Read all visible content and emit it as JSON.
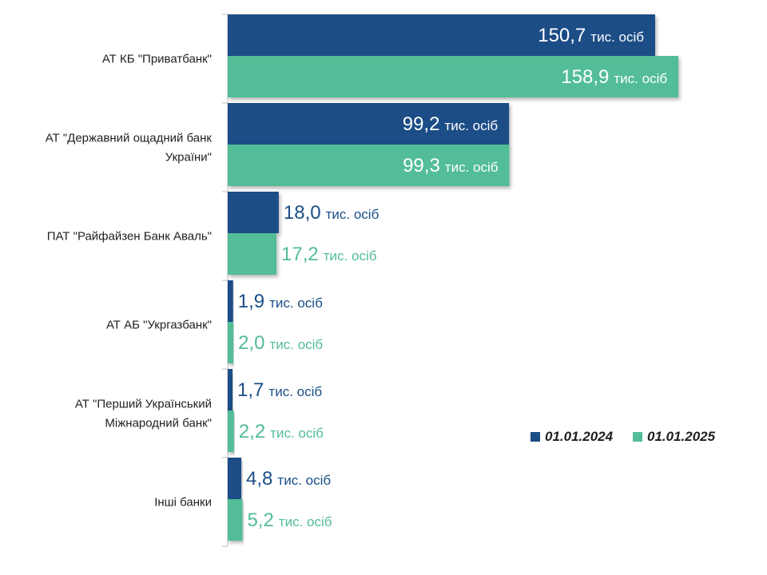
{
  "chart_data": {
    "type": "bar",
    "orientation": "horizontal",
    "title": "",
    "xlabel": "",
    "ylabel": "",
    "unit": "тис. осіб",
    "legend_position": "bottom-right",
    "grid": false,
    "categories": [
      [
        "АТ КБ \"Приватбанк\""
      ],
      [
        "АТ \"Державний ощадний банк",
        "України\""
      ],
      [
        "ПАТ \"Райфайзен Банк Аваль\""
      ],
      [
        "АТ АБ \"Укргазбанк\""
      ],
      [
        "АТ \"Перший Український",
        "Міжнародний банк\""
      ],
      [
        "Інші банки"
      ]
    ],
    "series": [
      {
        "name": "01.01.2024",
        "color": "#1a4e86",
        "values": [
          150.7,
          99.2,
          18.0,
          1.9,
          1.7,
          4.8
        ],
        "labels": [
          "150,7",
          "99,2",
          "18,0",
          "1,9",
          "1,7",
          "4,8"
        ]
      },
      {
        "name": "01.01.2025",
        "color": "#52bd97",
        "values": [
          158.9,
          99.3,
          17.2,
          2.0,
          2.2,
          5.2
        ],
        "labels": [
          "158,9",
          "99,3",
          "17,2",
          "2,0",
          "2,2",
          "5,2"
        ]
      }
    ]
  }
}
